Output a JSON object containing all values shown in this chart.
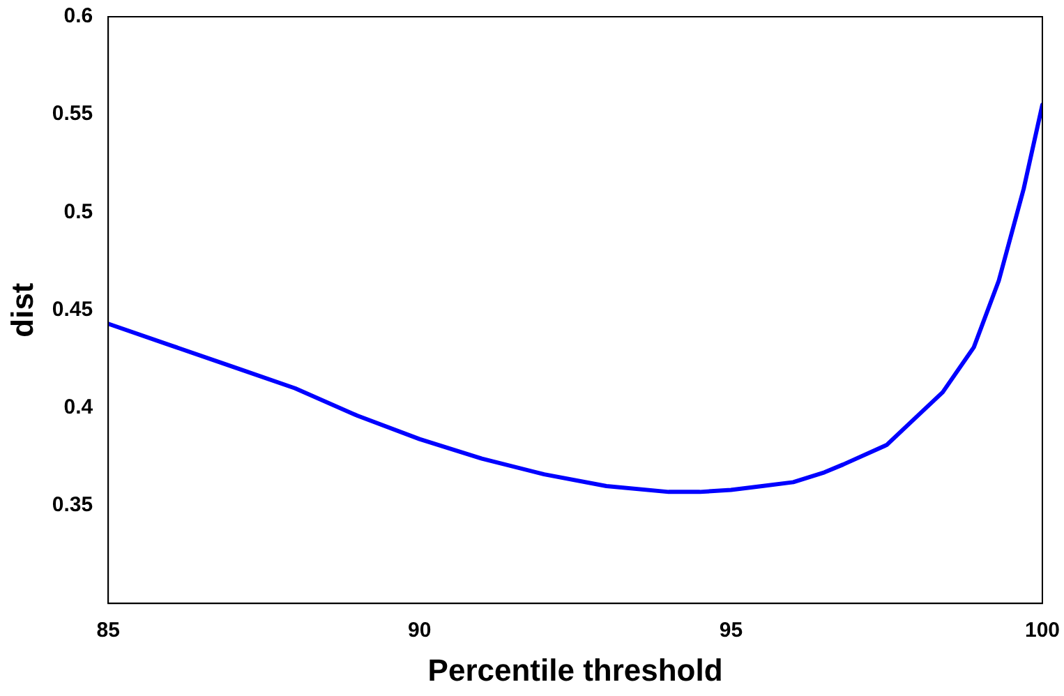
{
  "chart_data": {
    "type": "line",
    "xlabel": "Percentile threshold",
    "ylabel": "dist",
    "series": [
      {
        "color": "#0000ff",
        "x": [
          85,
          86,
          87,
          88,
          89,
          90,
          91,
          92,
          93,
          94,
          94.5,
          95,
          95.5,
          96,
          96.5,
          96.8,
          97.5,
          97.9,
          98.4,
          98.9,
          99.3,
          99.7,
          100
        ],
        "values": [
          0.443,
          0.432,
          0.421,
          0.41,
          0.396,
          0.384,
          0.374,
          0.366,
          0.36,
          0.357,
          0.357,
          0.358,
          0.36,
          0.362,
          0.367,
          0.371,
          0.381,
          0.393,
          0.408,
          0.431,
          0.465,
          0.512,
          0.555
        ]
      }
    ],
    "xlim": [
      85,
      100
    ],
    "xticks": [
      85,
      90,
      95,
      100
    ],
    "ylim": [
      0.3,
      0.6
    ],
    "yticks": [
      0.35,
      0.4,
      0.45,
      0.5,
      0.55,
      0.6
    ],
    "grid": false,
    "legend": false,
    "marker": "none",
    "line_style": "solid"
  }
}
